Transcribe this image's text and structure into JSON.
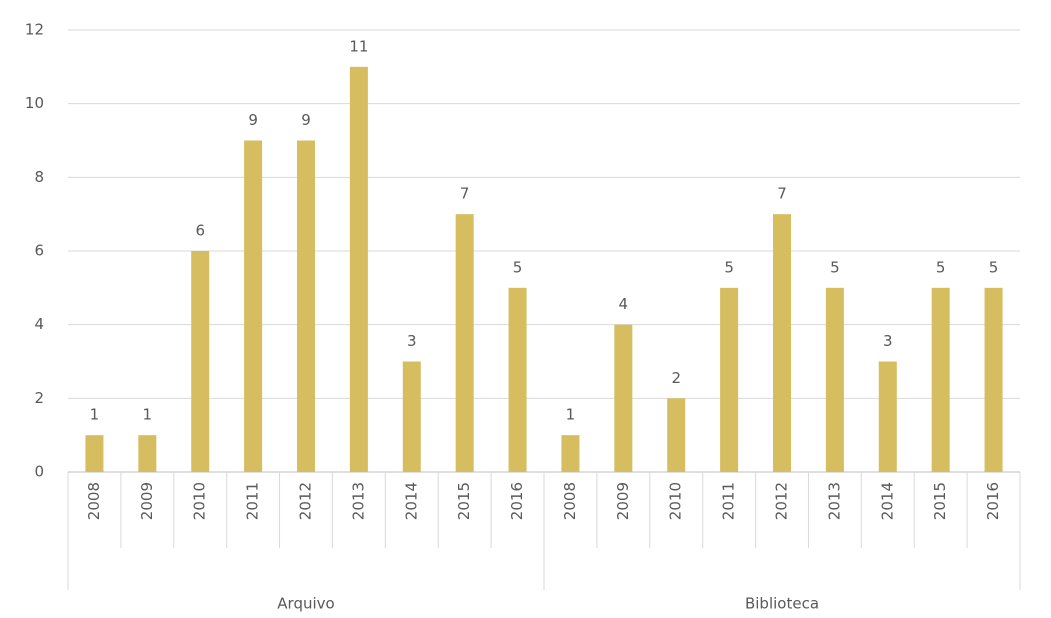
{
  "chart_data": {
    "type": "bar",
    "color": "#d5bd60",
    "ylim": [
      0,
      12
    ],
    "yticks": [
      0,
      2,
      4,
      6,
      8,
      10,
      12
    ],
    "grid": true,
    "groups": [
      {
        "label": "Arquivo",
        "categories": [
          "2008",
          "2009",
          "2010",
          "2011",
          "2012",
          "2013",
          "2014",
          "2015",
          "2016"
        ],
        "values": [
          1,
          1,
          6,
          9,
          9,
          11,
          3,
          7,
          5
        ]
      },
      {
        "label": "Biblioteca",
        "categories": [
          "2008",
          "2009",
          "2010",
          "2011",
          "2012",
          "2013",
          "2014",
          "2015",
          "2016"
        ],
        "values": [
          1,
          4,
          2,
          5,
          7,
          5,
          3,
          5,
          5
        ]
      }
    ]
  }
}
